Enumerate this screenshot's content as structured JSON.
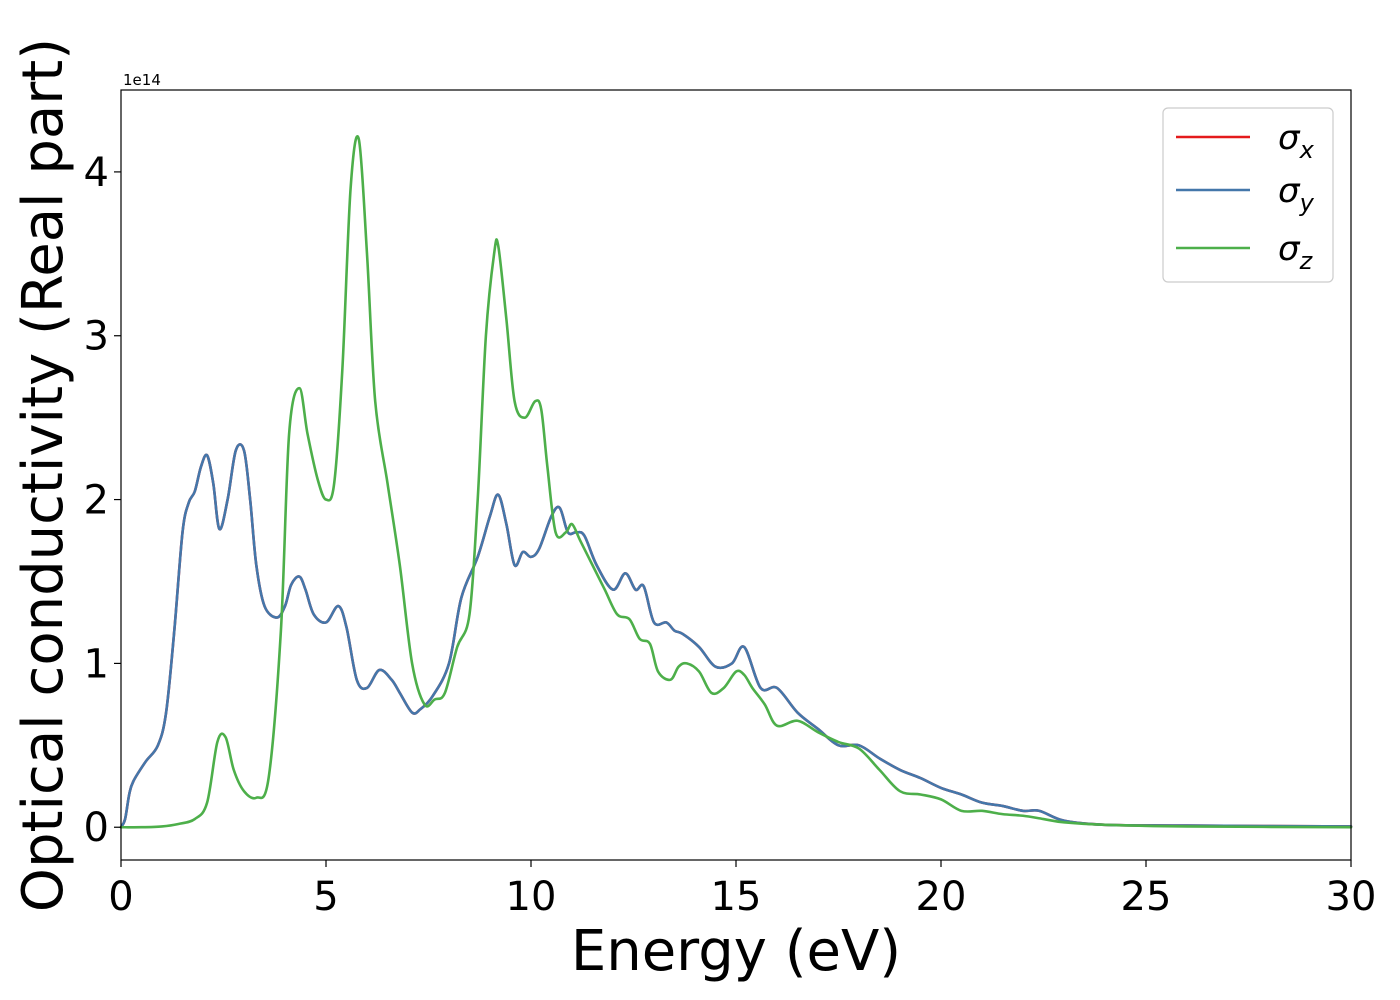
{
  "chart_data": {
    "type": "line",
    "title": "",
    "xlabel": "Energy (eV)",
    "ylabel": "Optical conductivity (Real part)",
    "y_offset_text": "1e14",
    "xlim": [
      0,
      30
    ],
    "ylim": [
      -0.2,
      4.5
    ],
    "xticks": [
      0,
      5,
      10,
      15,
      20,
      25,
      30
    ],
    "yticks": [
      0,
      1,
      2,
      3,
      4
    ],
    "grid": false,
    "legend_position": "top-right",
    "series": [
      {
        "name": "σx",
        "legend_base": "σ",
        "legend_sub": "x",
        "color": "#e41a1c",
        "x": [
          0,
          0.1,
          0.2,
          0.3,
          0.6,
          0.9,
          1.1,
          1.3,
          1.5,
          1.65,
          1.8,
          1.95,
          2.1,
          2.25,
          2.4,
          2.6,
          2.8,
          3.0,
          3.15,
          3.3,
          3.5,
          3.8,
          4.0,
          4.15,
          4.35,
          4.5,
          4.7,
          5.0,
          5.3,
          5.5,
          5.75,
          6.0,
          6.3,
          6.6,
          6.8,
          7.1,
          7.3,
          7.6,
          8.0,
          8.3,
          8.7,
          9.0,
          9.2,
          9.4,
          9.6,
          9.8,
          10.0,
          10.2,
          10.5,
          10.7,
          10.9,
          11.1,
          11.3,
          11.6,
          12.0,
          12.3,
          12.55,
          12.75,
          13.0,
          13.3,
          13.5,
          13.7,
          14.1,
          14.5,
          14.9,
          15.2,
          15.6,
          16.0,
          16.5,
          17.0,
          17.5,
          18.0,
          18.5,
          19.0,
          19.5,
          20.0,
          20.5,
          21.0,
          21.5,
          22.0,
          22.4,
          23.0,
          24.0,
          26.0,
          30.0
        ],
        "values": [
          0,
          0.05,
          0.2,
          0.28,
          0.4,
          0.5,
          0.7,
          1.2,
          1.8,
          1.98,
          2.05,
          2.2,
          2.27,
          2.1,
          1.82,
          2.0,
          2.3,
          2.3,
          2.0,
          1.6,
          1.35,
          1.28,
          1.35,
          1.48,
          1.53,
          1.45,
          1.3,
          1.25,
          1.35,
          1.22,
          0.9,
          0.85,
          0.96,
          0.9,
          0.82,
          0.7,
          0.72,
          0.8,
          1.0,
          1.4,
          1.65,
          1.9,
          2.03,
          1.85,
          1.6,
          1.68,
          1.65,
          1.7,
          1.9,
          1.95,
          1.8,
          1.8,
          1.78,
          1.6,
          1.45,
          1.55,
          1.45,
          1.47,
          1.25,
          1.25,
          1.2,
          1.18,
          1.1,
          0.98,
          1.0,
          1.1,
          0.85,
          0.85,
          0.7,
          0.6,
          0.5,
          0.5,
          0.42,
          0.35,
          0.3,
          0.24,
          0.2,
          0.15,
          0.13,
          0.1,
          0.1,
          0.04,
          0.015,
          0.01,
          0.005
        ]
      },
      {
        "name": "σy",
        "legend_base": "σ",
        "legend_sub": "y",
        "color": "#4477aa",
        "x": [
          0,
          0.1,
          0.2,
          0.3,
          0.6,
          0.9,
          1.1,
          1.3,
          1.5,
          1.65,
          1.8,
          1.95,
          2.1,
          2.25,
          2.4,
          2.6,
          2.8,
          3.0,
          3.15,
          3.3,
          3.5,
          3.8,
          4.0,
          4.15,
          4.35,
          4.5,
          4.7,
          5.0,
          5.3,
          5.5,
          5.75,
          6.0,
          6.3,
          6.6,
          6.8,
          7.1,
          7.3,
          7.6,
          8.0,
          8.3,
          8.7,
          9.0,
          9.2,
          9.4,
          9.6,
          9.8,
          10.0,
          10.2,
          10.5,
          10.7,
          10.9,
          11.1,
          11.3,
          11.6,
          12.0,
          12.3,
          12.55,
          12.75,
          13.0,
          13.3,
          13.5,
          13.7,
          14.1,
          14.5,
          14.9,
          15.2,
          15.6,
          16.0,
          16.5,
          17.0,
          17.5,
          18.0,
          18.5,
          19.0,
          19.5,
          20.0,
          20.5,
          21.0,
          21.5,
          22.0,
          22.4,
          23.0,
          24.0,
          26.0,
          30.0
        ],
        "values": [
          0,
          0.05,
          0.2,
          0.28,
          0.4,
          0.5,
          0.7,
          1.2,
          1.8,
          1.98,
          2.05,
          2.2,
          2.27,
          2.1,
          1.82,
          2.0,
          2.3,
          2.3,
          2.0,
          1.6,
          1.35,
          1.28,
          1.35,
          1.48,
          1.53,
          1.45,
          1.3,
          1.25,
          1.35,
          1.22,
          0.9,
          0.85,
          0.96,
          0.9,
          0.82,
          0.7,
          0.72,
          0.8,
          1.0,
          1.4,
          1.65,
          1.9,
          2.03,
          1.85,
          1.6,
          1.68,
          1.65,
          1.7,
          1.9,
          1.95,
          1.8,
          1.8,
          1.78,
          1.6,
          1.45,
          1.55,
          1.45,
          1.47,
          1.25,
          1.25,
          1.2,
          1.18,
          1.1,
          0.98,
          1.0,
          1.1,
          0.85,
          0.85,
          0.7,
          0.6,
          0.5,
          0.5,
          0.42,
          0.35,
          0.3,
          0.24,
          0.2,
          0.15,
          0.13,
          0.1,
          0.1,
          0.04,
          0.015,
          0.01,
          0.005
        ]
      },
      {
        "name": "σz",
        "legend_base": "σ",
        "legend_sub": "z",
        "color": "#4daf4a",
        "x": [
          0,
          0.5,
          1.0,
          1.4,
          1.8,
          2.1,
          2.35,
          2.55,
          2.75,
          3.0,
          3.3,
          3.6,
          3.9,
          4.1,
          4.35,
          4.55,
          4.8,
          5.0,
          5.2,
          5.4,
          5.6,
          5.8,
          6.0,
          6.2,
          6.5,
          6.8,
          7.1,
          7.4,
          7.65,
          7.9,
          8.2,
          8.5,
          8.7,
          8.9,
          9.1,
          9.2,
          9.4,
          9.6,
          9.85,
          10.1,
          10.25,
          10.4,
          10.6,
          10.85,
          11.0,
          11.2,
          11.5,
          11.8,
          12.1,
          12.4,
          12.65,
          12.9,
          13.1,
          13.4,
          13.6,
          13.8,
          14.1,
          14.4,
          14.7,
          15.0,
          15.2,
          15.4,
          15.7,
          16.0,
          16.5,
          17.0,
          17.5,
          18.0,
          18.5,
          19.0,
          19.5,
          20.0,
          20.5,
          21.0,
          21.5,
          22.0,
          22.5,
          23.0,
          24.0,
          26.0,
          30.0
        ],
        "values": [
          0,
          0.0,
          0.005,
          0.02,
          0.05,
          0.15,
          0.52,
          0.55,
          0.35,
          0.22,
          0.18,
          0.3,
          1.2,
          2.4,
          2.68,
          2.4,
          2.12,
          2.0,
          2.1,
          2.8,
          3.9,
          4.2,
          3.5,
          2.6,
          2.1,
          1.6,
          1.0,
          0.75,
          0.78,
          0.82,
          1.1,
          1.3,
          2.0,
          3.0,
          3.5,
          3.55,
          3.1,
          2.6,
          2.5,
          2.6,
          2.55,
          2.2,
          1.8,
          1.8,
          1.85,
          1.75,
          1.6,
          1.45,
          1.3,
          1.27,
          1.15,
          1.12,
          0.95,
          0.9,
          0.98,
          1.0,
          0.95,
          0.82,
          0.85,
          0.95,
          0.93,
          0.85,
          0.75,
          0.62,
          0.65,
          0.58,
          0.52,
          0.48,
          0.35,
          0.22,
          0.2,
          0.17,
          0.1,
          0.1,
          0.08,
          0.07,
          0.05,
          0.03,
          0.015,
          0.005,
          0.0
        ]
      }
    ]
  }
}
